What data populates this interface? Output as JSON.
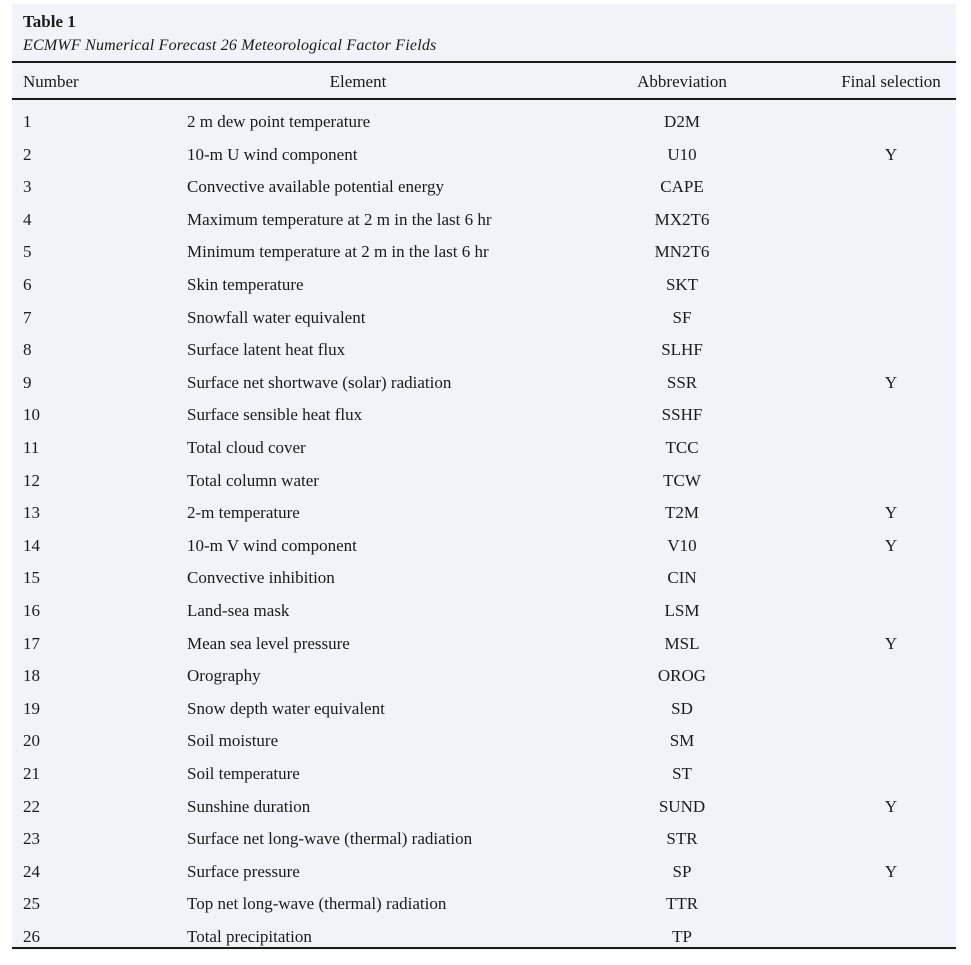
{
  "table": {
    "label": "Table 1",
    "caption": "ECMWF Numerical Forecast 26 Meteorological Factor Fields",
    "headers": [
      "Number",
      "Element",
      "Abbreviation",
      "Final selection"
    ],
    "rows": [
      {
        "number": "1",
        "element": "2 m dew point temperature",
        "abbreviation": "D2M",
        "final_selection": ""
      },
      {
        "number": "2",
        "element": "10-m U wind component",
        "abbreviation": "U10",
        "final_selection": "Y"
      },
      {
        "number": "3",
        "element": "Convective available potential energy",
        "abbreviation": "CAPE",
        "final_selection": ""
      },
      {
        "number": "4",
        "element": "Maximum temperature at 2 m in the last 6 hr",
        "abbreviation": "MX2T6",
        "final_selection": ""
      },
      {
        "number": "5",
        "element": "Minimum temperature at 2 m in the last 6 hr",
        "abbreviation": "MN2T6",
        "final_selection": ""
      },
      {
        "number": "6",
        "element": "Skin temperature",
        "abbreviation": "SKT",
        "final_selection": ""
      },
      {
        "number": "7",
        "element": "Snowfall water equivalent",
        "abbreviation": "SF",
        "final_selection": ""
      },
      {
        "number": "8",
        "element": "Surface latent heat flux",
        "abbreviation": "SLHF",
        "final_selection": ""
      },
      {
        "number": "9",
        "element": "Surface net shortwave (solar) radiation",
        "abbreviation": "SSR",
        "final_selection": "Y"
      },
      {
        "number": "10",
        "element": "Surface sensible heat flux",
        "abbreviation": "SSHF",
        "final_selection": ""
      },
      {
        "number": "11",
        "element": "Total cloud cover",
        "abbreviation": "TCC",
        "final_selection": ""
      },
      {
        "number": "12",
        "element": "Total column water",
        "abbreviation": "TCW",
        "final_selection": ""
      },
      {
        "number": "13",
        "element": "2-m temperature",
        "abbreviation": "T2M",
        "final_selection": "Y"
      },
      {
        "number": "14",
        "element": "10-m V wind component",
        "abbreviation": "V10",
        "final_selection": "Y"
      },
      {
        "number": "15",
        "element": "Convective inhibition",
        "abbreviation": "CIN",
        "final_selection": ""
      },
      {
        "number": "16",
        "element": "Land-sea mask",
        "abbreviation": "LSM",
        "final_selection": ""
      },
      {
        "number": "17",
        "element": "Mean sea level pressure",
        "abbreviation": "MSL",
        "final_selection": "Y"
      },
      {
        "number": "18",
        "element": "Orography",
        "abbreviation": "OROG",
        "final_selection": ""
      },
      {
        "number": "19",
        "element": "Snow depth water equivalent",
        "abbreviation": "SD",
        "final_selection": ""
      },
      {
        "number": "20",
        "element": "Soil moisture",
        "abbreviation": "SM",
        "final_selection": ""
      },
      {
        "number": "21",
        "element": "Soil temperature",
        "abbreviation": "ST",
        "final_selection": ""
      },
      {
        "number": "22",
        "element": "Sunshine duration",
        "abbreviation": "SUND",
        "final_selection": "Y"
      },
      {
        "number": "23",
        "element": "Surface net long-wave (thermal) radiation",
        "abbreviation": "STR",
        "final_selection": ""
      },
      {
        "number": "24",
        "element": "Surface pressure",
        "abbreviation": "SP",
        "final_selection": "Y"
      },
      {
        "number": "25",
        "element": "Top net long-wave (thermal) radiation",
        "abbreviation": "TTR",
        "final_selection": ""
      },
      {
        "number": "26",
        "element": "Total precipitation",
        "abbreviation": "TP",
        "final_selection": ""
      }
    ]
  }
}
